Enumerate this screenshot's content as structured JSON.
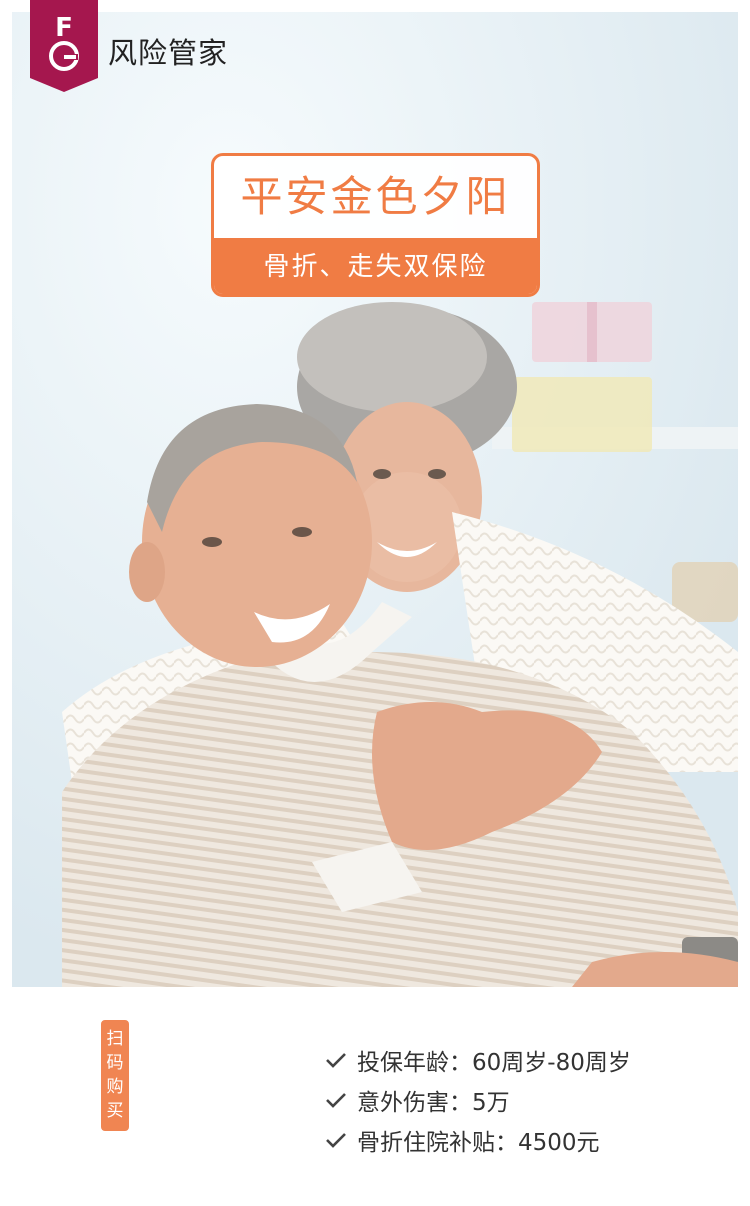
{
  "brand": {
    "name": "风险管家",
    "logo_letters": "FG",
    "logo_color": "#a5174e"
  },
  "hero": {
    "photo": "elderly-couple-embracing",
    "title": "平安金色夕阳",
    "subtitle": "骨折、走失双保险",
    "accent_color": "#f07c44"
  },
  "scan_tag": {
    "chars": [
      "扫",
      "码",
      "购",
      "买"
    ]
  },
  "features": [
    {
      "icon": "check-icon",
      "text": "投保年龄：60周岁-80周岁"
    },
    {
      "icon": "check-icon",
      "text": "意外伤害：5万"
    },
    {
      "icon": "check-icon",
      "text": "骨折住院补贴：4500元"
    }
  ]
}
